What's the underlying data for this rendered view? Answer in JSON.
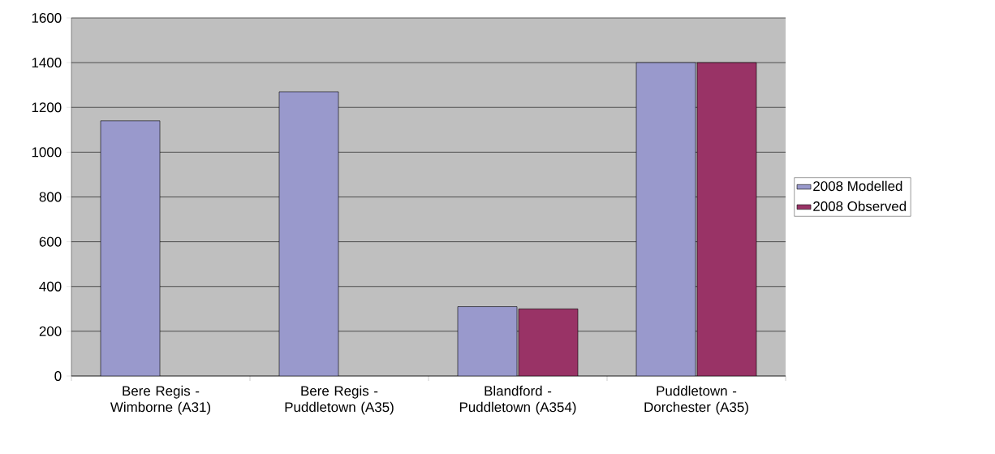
{
  "chart_data": {
    "type": "bar",
    "categories": [
      "Bere Regis - Wimborne (A31)",
      "Bere Regis - Puddletown (A35)",
      "Blandford - Puddletown (A354)",
      "Puddletown - Dorchester (A35)"
    ],
    "series": [
      {
        "name": "2008 Modelled",
        "color": "#9999cc",
        "values": [
          1140,
          1270,
          310,
          1400
        ]
      },
      {
        "name": "2008 Observed",
        "color": "#993366",
        "values": [
          null,
          null,
          300,
          1400
        ]
      }
    ],
    "ylim": [
      0,
      1600
    ],
    "yticks": [
      0,
      200,
      400,
      600,
      800,
      1000,
      1200,
      1400,
      1600
    ],
    "grid": "y",
    "legend": "right"
  }
}
